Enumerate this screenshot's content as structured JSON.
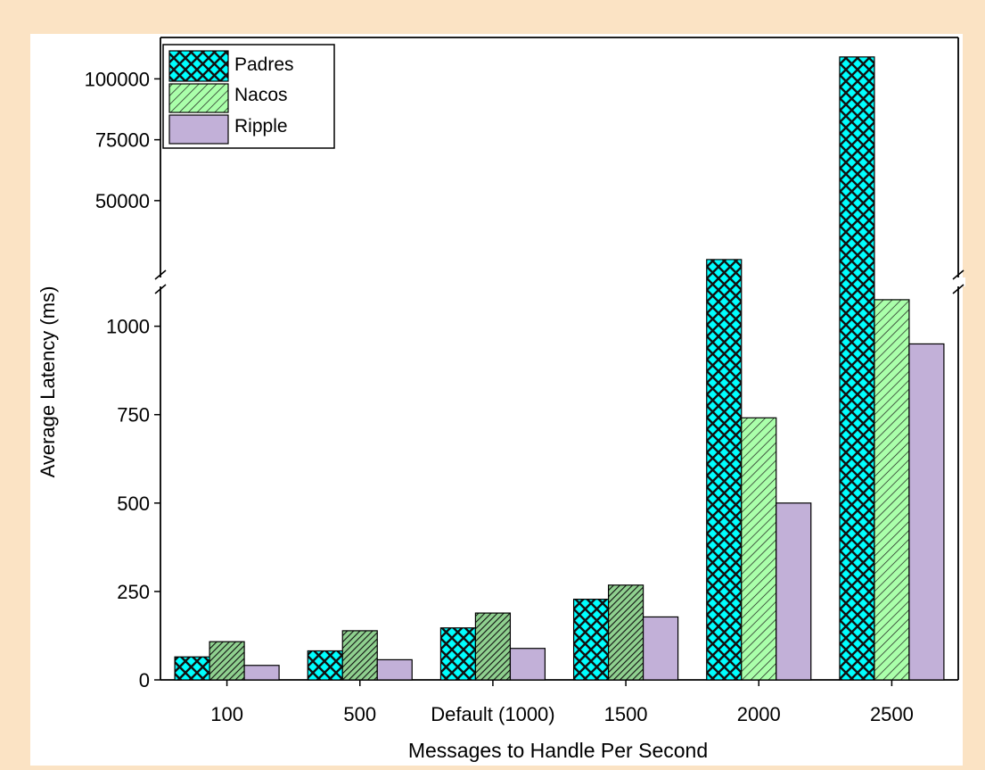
{
  "chart_data": {
    "type": "bar",
    "xlabel": "Messages to Handle Per Second",
    "ylabel": "Average Latency (ms)",
    "categories": [
      "100",
      "500",
      "Default (1000)",
      "1500",
      "2000",
      "2500"
    ],
    "series": [
      {
        "name": "Padres",
        "values": [
          65,
          82,
          147,
          228,
          25800,
          109000
        ]
      },
      {
        "name": "Nacos",
        "values": [
          108,
          139,
          189,
          268,
          741,
          1075
        ]
      },
      {
        "name": "Ripple",
        "values": [
          41,
          57,
          89,
          178,
          500,
          950
        ]
      }
    ],
    "y_axis": {
      "broken": true,
      "lower_range": [
        0,
        1100
      ],
      "lower_ticks": [
        0,
        250,
        500,
        750,
        1000
      ],
      "upper_range": [
        21000,
        117000
      ],
      "upper_ticks": [
        50000,
        75000,
        100000
      ]
    },
    "legend_position": "top-left",
    "grid": false,
    "colors": {
      "Padres": "#00ffff",
      "Nacos": "#aaffaa",
      "Ripple": "#c2b0d8"
    },
    "patterns": {
      "Padres": "diamond-crosshatch",
      "Nacos": "diagonal-hatch",
      "Ripple": "solid"
    }
  }
}
